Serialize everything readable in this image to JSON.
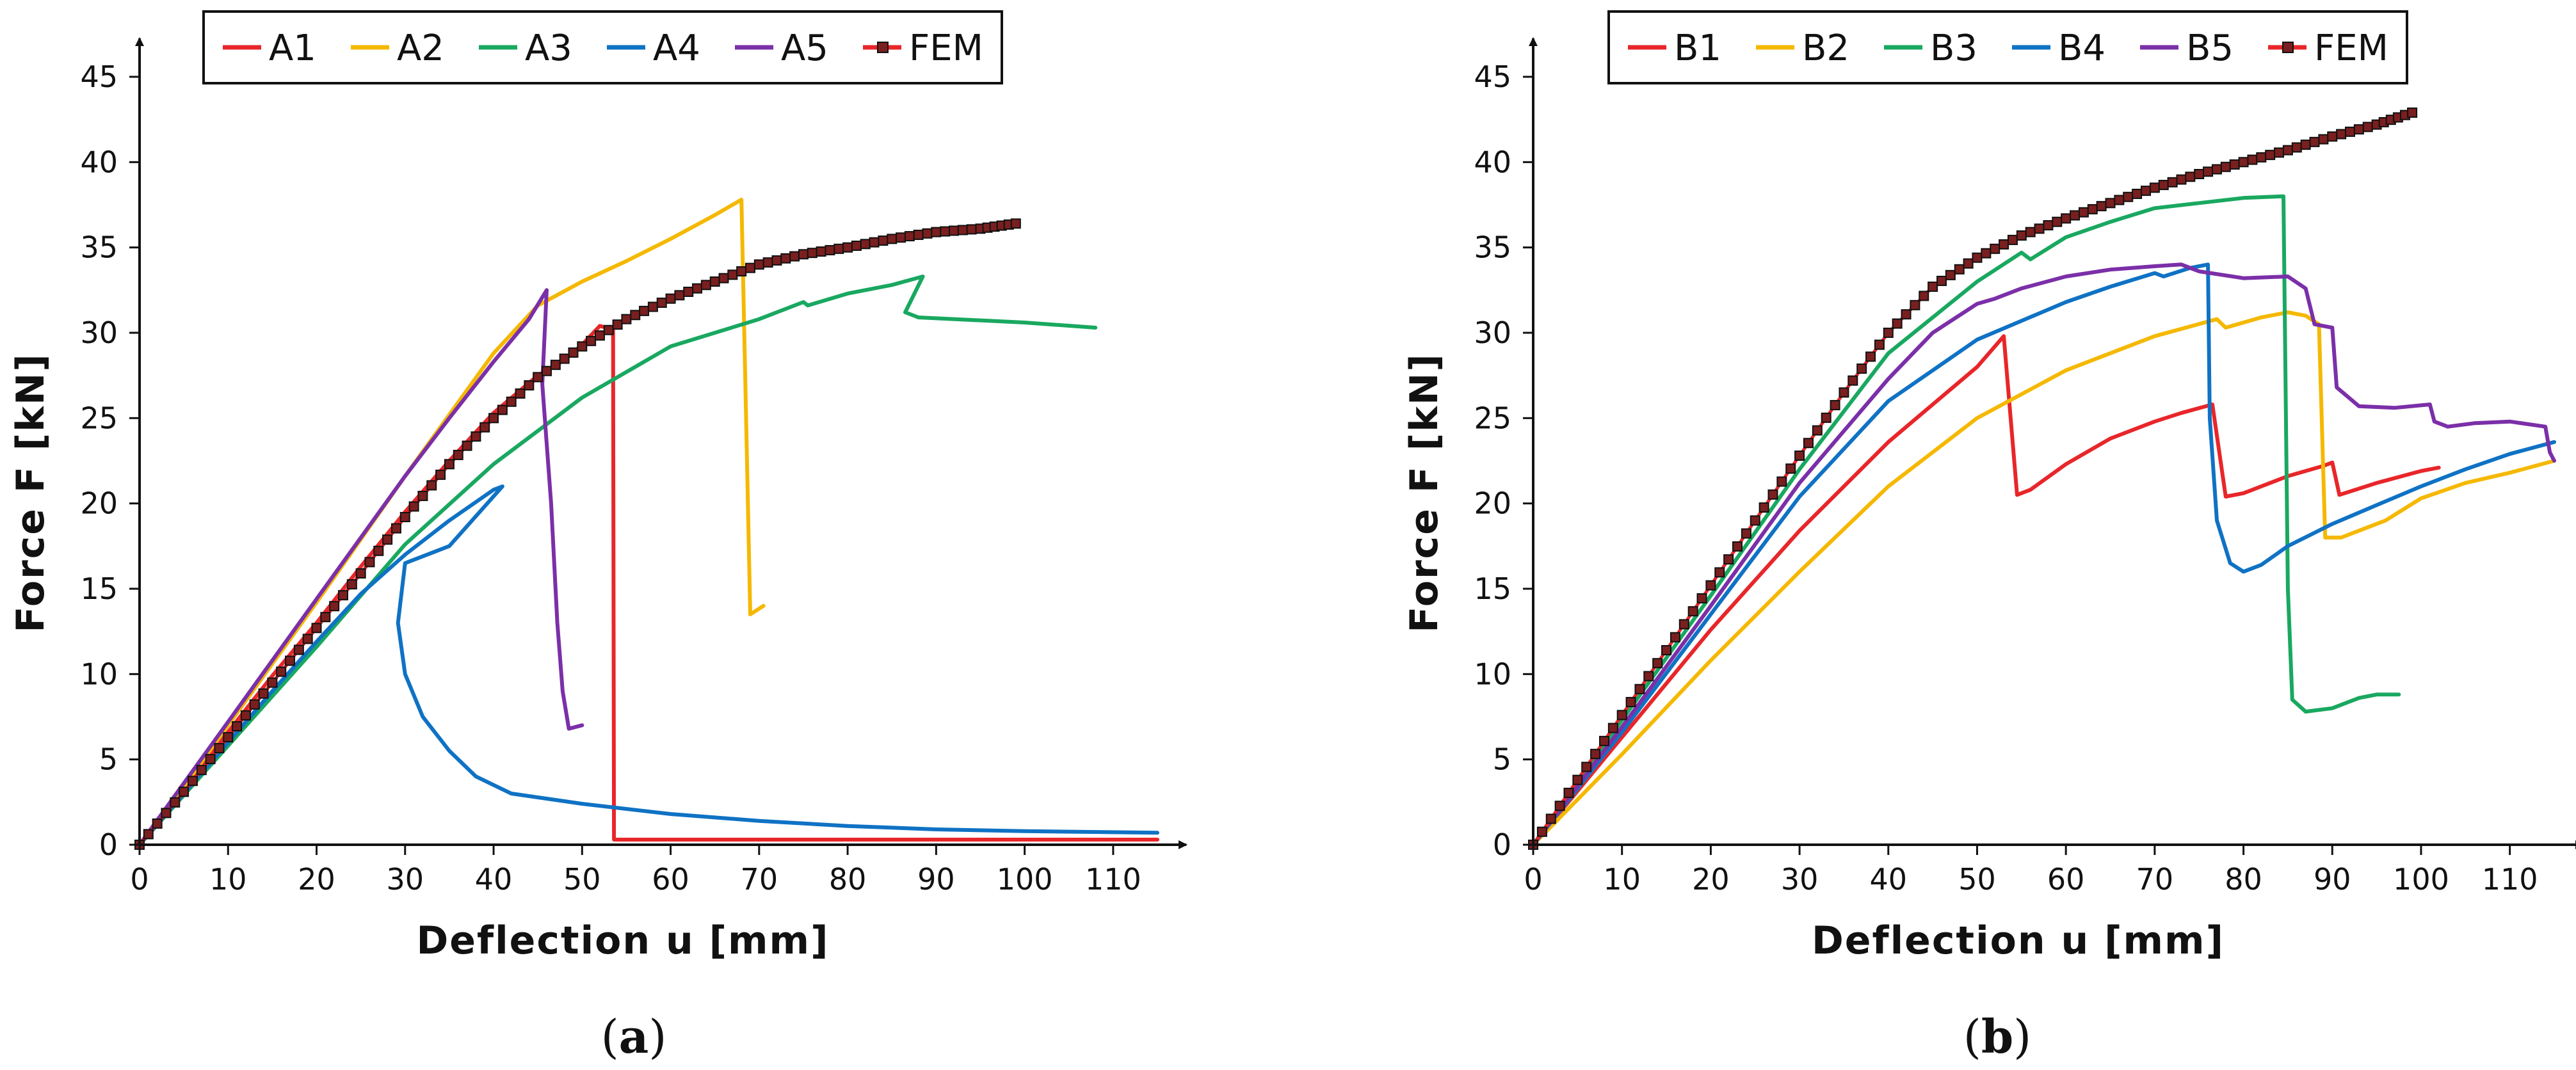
{
  "chart_data": [
    {
      "type": "line",
      "panel_label": "a",
      "xlabel": "Deflection u [mm]",
      "ylabel": "Force F [kN]",
      "xlim": [
        0,
        115
      ],
      "ylim": [
        0,
        45
      ],
      "x_ticks": [
        0,
        10,
        20,
        30,
        40,
        50,
        60,
        70,
        80,
        90,
        100,
        110
      ],
      "y_ticks": [
        0,
        5,
        10,
        15,
        20,
        25,
        30,
        35,
        40,
        45
      ],
      "grid": false,
      "legend_position": "top-center",
      "legend": [
        "A1",
        "A2",
        "A3",
        "A4",
        "A5",
        "FEM"
      ],
      "series": [
        {
          "name": "A1",
          "color": "#e8262a",
          "marker": "none",
          "points": [
            [
              0,
              0
            ],
            [
              5,
              3.3
            ],
            [
              10,
              6.6
            ],
            [
              15,
              9.9
            ],
            [
              20,
              13.0
            ],
            [
              25,
              16.3
            ],
            [
              30,
              19.5
            ],
            [
              35,
              22.5
            ],
            [
              40,
              25.3
            ],
            [
              45,
              27.5
            ],
            [
              48,
              28.4
            ],
            [
              50,
              29.3
            ],
            [
              52,
              30.4
            ],
            [
              53.5,
              30.2
            ],
            [
              53.6,
              0.3
            ],
            [
              115,
              0.3
            ]
          ]
        },
        {
          "name": "A2",
          "color": "#f5b800",
          "marker": "none",
          "points": [
            [
              0,
              0
            ],
            [
              5,
              3.4
            ],
            [
              10,
              7.0
            ],
            [
              15,
              10.6
            ],
            [
              20,
              14.2
            ],
            [
              25,
              17.9
            ],
            [
              30,
              21.6
            ],
            [
              35,
              25.2
            ],
            [
              40,
              28.8
            ],
            [
              45,
              31.6
            ],
            [
              50,
              33.0
            ],
            [
              55,
              34.2
            ],
            [
              60,
              35.5
            ],
            [
              65,
              36.9
            ],
            [
              68,
              37.8
            ],
            [
              69,
              13.5
            ],
            [
              70.5,
              14.0
            ]
          ]
        },
        {
          "name": "A3",
          "color": "#19a860",
          "marker": "none",
          "points": [
            [
              0,
              0
            ],
            [
              10,
              5.8
            ],
            [
              20,
              11.6
            ],
            [
              30,
              17.6
            ],
            [
              40,
              22.3
            ],
            [
              50,
              26.2
            ],
            [
              60,
              29.2
            ],
            [
              70,
              30.8
            ],
            [
              75,
              31.8
            ],
            [
              75.5,
              31.6
            ],
            [
              80,
              32.3
            ],
            [
              85,
              32.8
            ],
            [
              88.5,
              33.3
            ],
            [
              86.5,
              31.2
            ],
            [
              88,
              30.9
            ],
            [
              100,
              30.6
            ],
            [
              108,
              30.3
            ]
          ]
        },
        {
          "name": "A4",
          "color": "#0f72c4",
          "marker": "none",
          "points": [
            [
              0,
              0
            ],
            [
              5,
              3.0
            ],
            [
              10,
              6.0
            ],
            [
              15,
              9.0
            ],
            [
              20,
              11.9
            ],
            [
              25,
              14.7
            ],
            [
              30,
              17.0
            ],
            [
              35,
              19.0
            ],
            [
              40,
              20.8
            ],
            [
              41,
              21.0
            ],
            [
              35,
              17.5
            ],
            [
              30,
              16.5
            ],
            [
              29.2,
              13.0
            ],
            [
              30,
              10.0
            ],
            [
              32,
              7.5
            ],
            [
              35,
              5.5
            ],
            [
              38,
              4.0
            ],
            [
              42,
              3.0
            ],
            [
              50,
              2.4
            ],
            [
              60,
              1.8
            ],
            [
              70,
              1.4
            ],
            [
              80,
              1.1
            ],
            [
              90,
              0.9
            ],
            [
              100,
              0.8
            ],
            [
              115,
              0.7
            ]
          ]
        },
        {
          "name": "A5",
          "color": "#7b2fa8",
          "marker": "none",
          "points": [
            [
              0,
              0
            ],
            [
              5,
              3.6
            ],
            [
              10,
              7.2
            ],
            [
              15,
              10.8
            ],
            [
              20,
              14.4
            ],
            [
              25,
              18.0
            ],
            [
              30,
              21.6
            ],
            [
              35,
              25.0
            ],
            [
              40,
              28.3
            ],
            [
              44,
              30.8
            ],
            [
              46,
              32.5
            ],
            [
              45.5,
              27.0
            ],
            [
              46.5,
              20.0
            ],
            [
              47.2,
              13.0
            ],
            [
              47.8,
              9.0
            ],
            [
              48.5,
              6.8
            ],
            [
              50,
              7.0
            ]
          ]
        },
        {
          "name": "FEM",
          "color": "#e8262a",
          "marker": "square",
          "points": [
            [
              0,
              0
            ],
            [
              5,
              3.1
            ],
            [
              10,
              6.3
            ],
            [
              15,
              9.5
            ],
            [
              20,
              12.7
            ],
            [
              25,
              15.9
            ],
            [
              30,
              19.2
            ],
            [
              35,
              22.3
            ],
            [
              40,
              25.0
            ],
            [
              45,
              27.4
            ],
            [
              50,
              29.2
            ],
            [
              55,
              30.8
            ],
            [
              60,
              32.0
            ],
            [
              65,
              33.0
            ],
            [
              70,
              34.0
            ],
            [
              75,
              34.6
            ],
            [
              80,
              35.0
            ],
            [
              85,
              35.5
            ],
            [
              90,
              35.9
            ],
            [
              95,
              36.1
            ],
            [
              99,
              36.4
            ]
          ]
        }
      ]
    },
    {
      "type": "line",
      "panel_label": "b",
      "xlabel": "Deflection u [mm]",
      "ylabel": "Force F [kN]",
      "xlim": [
        0,
        115
      ],
      "ylim": [
        0,
        45
      ],
      "x_ticks": [
        0,
        10,
        20,
        30,
        40,
        50,
        60,
        70,
        80,
        90,
        100,
        110
      ],
      "y_ticks": [
        0,
        5,
        10,
        15,
        20,
        25,
        30,
        35,
        40,
        45
      ],
      "grid": false,
      "legend_position": "top-center",
      "legend": [
        "B1",
        "B2",
        "B3",
        "B4",
        "B5",
        "FEM"
      ],
      "series": [
        {
          "name": "B1",
          "color": "#e8262a",
          "marker": "none",
          "points": [
            [
              0,
              0
            ],
            [
              10,
              6.3
            ],
            [
              20,
              12.6
            ],
            [
              30,
              18.4
            ],
            [
              40,
              23.6
            ],
            [
              45,
              25.8
            ],
            [
              50,
              28.0
            ],
            [
              53,
              29.8
            ],
            [
              54.5,
              20.5
            ],
            [
              56,
              20.8
            ],
            [
              60,
              22.3
            ],
            [
              65,
              23.8
            ],
            [
              70,
              24.8
            ],
            [
              73,
              25.3
            ],
            [
              76.5,
              25.8
            ],
            [
              78,
              20.4
            ],
            [
              80,
              20.6
            ],
            [
              85,
              21.6
            ],
            [
              89,
              22.2
            ],
            [
              90,
              22.4
            ],
            [
              90.8,
              20.5
            ],
            [
              95,
              21.2
            ],
            [
              100,
              21.9
            ],
            [
              102,
              22.1
            ]
          ]
        },
        {
          "name": "B2",
          "color": "#f5b800",
          "marker": "none",
          "points": [
            [
              0,
              0
            ],
            [
              10,
              5.3
            ],
            [
              20,
              10.8
            ],
            [
              30,
              16.0
            ],
            [
              40,
              21.0
            ],
            [
              50,
              25.0
            ],
            [
              60,
              27.8
            ],
            [
              70,
              29.8
            ],
            [
              77,
              30.8
            ],
            [
              78,
              30.3
            ],
            [
              82,
              30.9
            ],
            [
              85,
              31.2
            ],
            [
              87,
              31.0
            ],
            [
              88.5,
              30.5
            ],
            [
              89.2,
              18.0
            ],
            [
              91,
              18.0
            ],
            [
              93,
              18.4
            ],
            [
              96,
              19.0
            ],
            [
              100,
              20.3
            ],
            [
              105,
              21.2
            ],
            [
              110,
              21.8
            ],
            [
              115,
              22.5
            ]
          ]
        },
        {
          "name": "B3",
          "color": "#19a860",
          "marker": "none",
          "points": [
            [
              0,
              0
            ],
            [
              10,
              7.3
            ],
            [
              20,
              14.6
            ],
            [
              30,
              22.0
            ],
            [
              40,
              28.8
            ],
            [
              50,
              33.0
            ],
            [
              55,
              34.7
            ],
            [
              56,
              34.3
            ],
            [
              60,
              35.6
            ],
            [
              65,
              36.5
            ],
            [
              70,
              37.3
            ],
            [
              75,
              37.6
            ],
            [
              80,
              37.9
            ],
            [
              84.5,
              38.0
            ],
            [
              85,
              15.0
            ],
            [
              85.5,
              8.5
            ],
            [
              87,
              7.8
            ],
            [
              90,
              8.0
            ],
            [
              93,
              8.6
            ],
            [
              95,
              8.8
            ],
            [
              97.5,
              8.8
            ]
          ]
        },
        {
          "name": "B4",
          "color": "#0f72c4",
          "marker": "none",
          "points": [
            [
              0,
              0
            ],
            [
              10,
              6.6
            ],
            [
              20,
              13.5
            ],
            [
              30,
              20.4
            ],
            [
              40,
              26.0
            ],
            [
              50,
              29.6
            ],
            [
              60,
              31.8
            ],
            [
              65,
              32.7
            ],
            [
              70,
              33.5
            ],
            [
              71,
              33.3
            ],
            [
              74,
              33.8
            ],
            [
              76,
              34.0
            ],
            [
              76.2,
              25.0
            ],
            [
              77,
              19.0
            ],
            [
              78.5,
              16.5
            ],
            [
              80,
              16.0
            ],
            [
              82,
              16.4
            ],
            [
              85,
              17.5
            ],
            [
              90,
              18.8
            ],
            [
              95,
              19.9
            ],
            [
              100,
              21.0
            ],
            [
              105,
              22.0
            ],
            [
              110,
              22.9
            ],
            [
              115,
              23.6
            ]
          ]
        },
        {
          "name": "B5",
          "color": "#7b2fa8",
          "marker": "none",
          "points": [
            [
              0,
              0
            ],
            [
              10,
              6.9
            ],
            [
              20,
              14.0
            ],
            [
              30,
              21.2
            ],
            [
              40,
              27.3
            ],
            [
              45,
              30.0
            ],
            [
              50,
              31.7
            ],
            [
              52,
              32.0
            ],
            [
              55,
              32.6
            ],
            [
              60,
              33.3
            ],
            [
              65,
              33.7
            ],
            [
              70,
              33.9
            ],
            [
              73,
              34.0
            ],
            [
              75,
              33.6
            ],
            [
              80,
              33.2
            ],
            [
              85,
              33.3
            ],
            [
              87,
              32.6
            ],
            [
              88,
              30.5
            ],
            [
              90,
              30.3
            ],
            [
              90.5,
              26.8
            ],
            [
              93,
              25.7
            ],
            [
              97,
              25.6
            ],
            [
              101,
              25.8
            ],
            [
              101.5,
              24.8
            ],
            [
              103,
              24.5
            ],
            [
              106,
              24.7
            ],
            [
              110,
              24.8
            ],
            [
              114,
              24.5
            ],
            [
              114.5,
              23.0
            ],
            [
              115,
              22.5
            ]
          ]
        },
        {
          "name": "FEM",
          "color": "#e8262a",
          "marker": "square",
          "points": [
            [
              0,
              0
            ],
            [
              5,
              3.8
            ],
            [
              10,
              7.6
            ],
            [
              15,
              11.4
            ],
            [
              20,
              15.2
            ],
            [
              25,
              19.0
            ],
            [
              30,
              22.8
            ],
            [
              35,
              26.5
            ],
            [
              40,
              30.0
            ],
            [
              45,
              32.7
            ],
            [
              50,
              34.4
            ],
            [
              55,
              35.7
            ],
            [
              60,
              36.7
            ],
            [
              65,
              37.6
            ],
            [
              70,
              38.5
            ],
            [
              75,
              39.3
            ],
            [
              80,
              40.0
            ],
            [
              85,
              40.7
            ],
            [
              90,
              41.5
            ],
            [
              95,
              42.2
            ],
            [
              99,
              42.9
            ]
          ]
        }
      ]
    }
  ]
}
